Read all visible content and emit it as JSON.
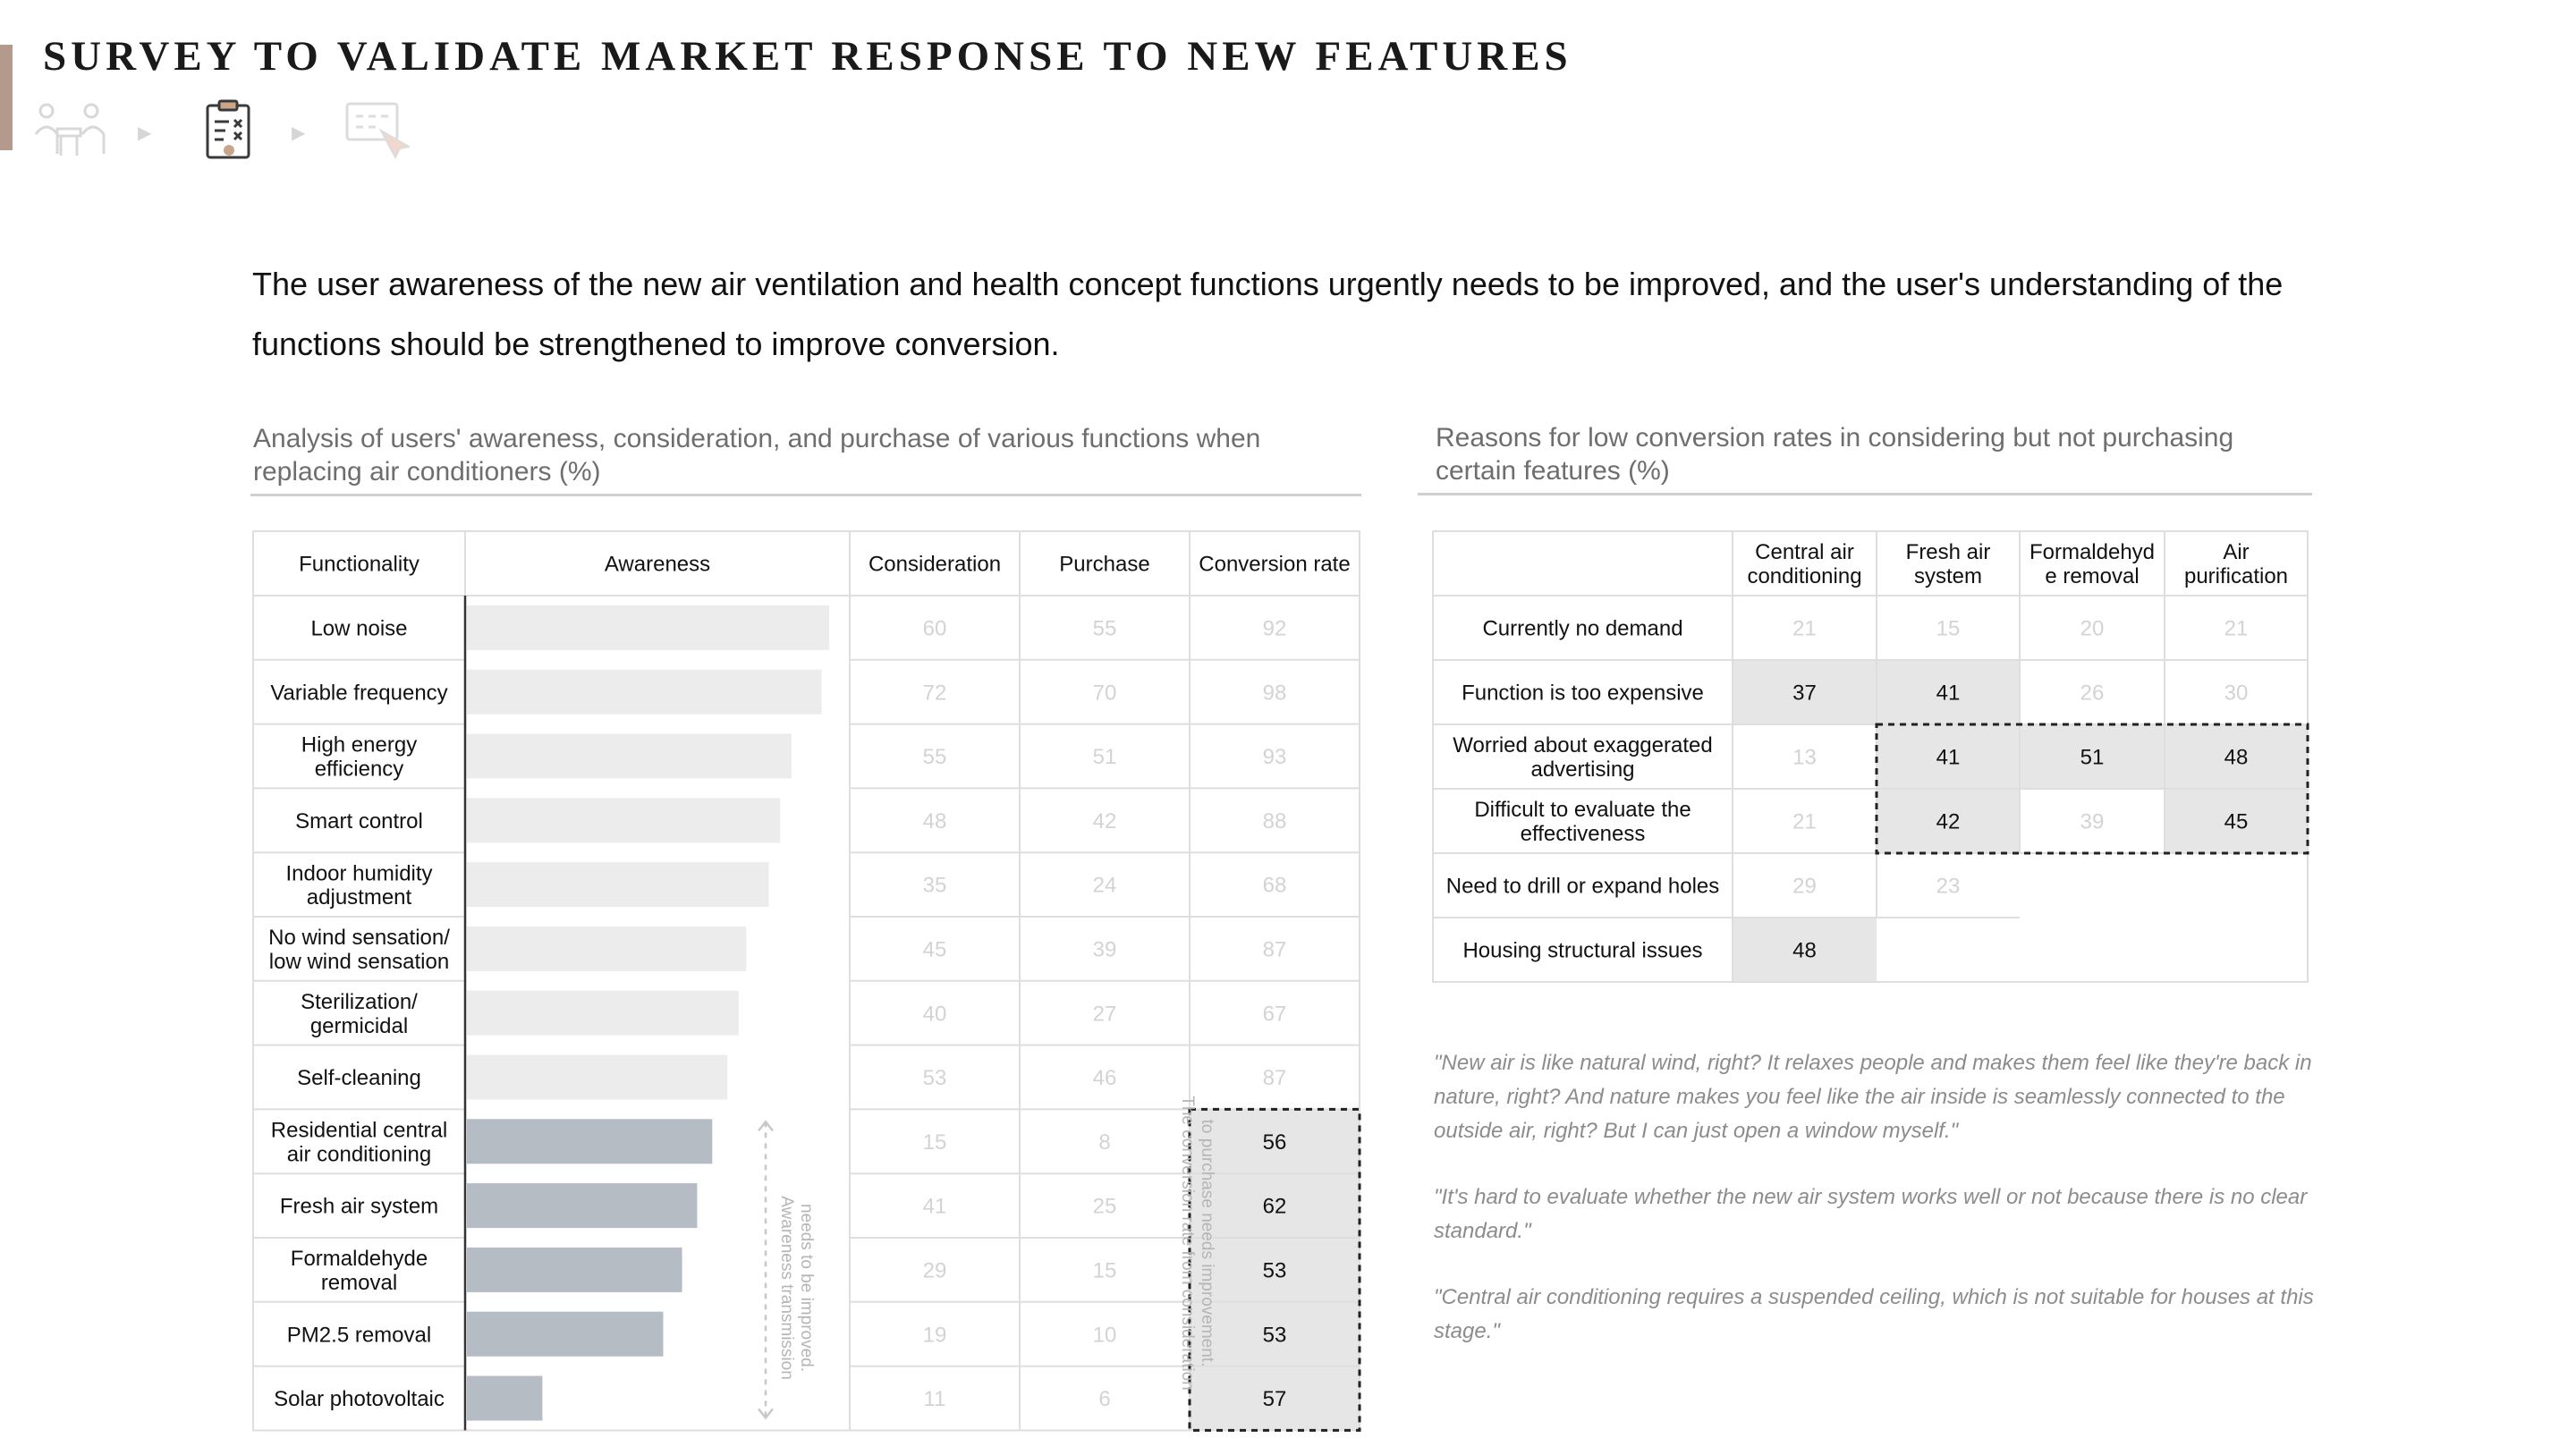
{
  "title": "SURVEY TO VALIDATE MARKET RESPONSE TO NEW FEATURES",
  "steps": [
    {
      "icon": "interview-icon",
      "state": "inactive"
    },
    {
      "icon": "survey-clipboard-icon",
      "state": "active"
    },
    {
      "icon": "screen-click-icon",
      "state": "inactive"
    }
  ],
  "headline": "The user awareness of the new air ventilation and health concept functions urgently needs to be improved, and the user's understanding of the functions should be strengthened to improve conversion.",
  "left": {
    "subtitle": "Analysis of users' awareness, consideration, and purchase of various functions when replacing air conditioners (%)",
    "annotation_awareness": [
      "Awareness transmission",
      "needs to be improved."
    ],
    "annotation_conversion": [
      "The conversion rate from consideration",
      "to purchase needs improvement."
    ]
  },
  "right": {
    "subtitle": "Reasons for low conversion rates in considering but not purchasing certain features (%)"
  },
  "chart_data": [
    {
      "type": "table",
      "columns": [
        "Functionality",
        "Awareness",
        "Consideration",
        "Purchase",
        "Conversion rate"
      ],
      "rows": [
        {
          "label": [
            "Low noise"
          ],
          "awareness": 96,
          "consideration": 60,
          "purchase": 55,
          "conversion": 92
        },
        {
          "label": [
            "Variable frequency"
          ],
          "awareness": 94,
          "consideration": 72,
          "purchase": 70,
          "conversion": 98
        },
        {
          "label": [
            "High energy",
            "efficiency"
          ],
          "awareness": 86,
          "consideration": 55,
          "purchase": 51,
          "conversion": 93
        },
        {
          "label": [
            "Smart control"
          ],
          "awareness": 83,
          "consideration": 48,
          "purchase": 42,
          "conversion": 88
        },
        {
          "label": [
            "Indoor humidity",
            "adjustment"
          ],
          "awareness": 80,
          "consideration": 35,
          "purchase": 24,
          "conversion": 68
        },
        {
          "label": [
            "No wind sensation/",
            "low wind sensation"
          ],
          "awareness": 74,
          "consideration": 45,
          "purchase": 39,
          "conversion": 87
        },
        {
          "label": [
            "Sterilization/",
            "germicidal"
          ],
          "awareness": 72,
          "consideration": 40,
          "purchase": 27,
          "conversion": 67
        },
        {
          "label": [
            "Self-cleaning"
          ],
          "awareness": 69,
          "consideration": 53,
          "purchase": 46,
          "conversion": 87
        },
        {
          "label": [
            "Residential central",
            "air conditioning"
          ],
          "awareness": 65,
          "consideration": 15,
          "purchase": 8,
          "conversion": 56
        },
        {
          "label": [
            "Fresh air system"
          ],
          "awareness": 61,
          "consideration": 41,
          "purchase": 25,
          "conversion": 62
        },
        {
          "label": [
            "Formaldehyde",
            "removal"
          ],
          "awareness": 57,
          "consideration": 29,
          "purchase": 15,
          "conversion": 53
        },
        {
          "label": [
            "PM2.5 removal"
          ],
          "awareness": 52,
          "consideration": 19,
          "purchase": 10,
          "conversion": 53
        },
        {
          "label": [
            "Solar photovoltaic"
          ],
          "awareness": 20,
          "consideration": 11,
          "purchase": 6,
          "conversion": 57
        }
      ],
      "highlighted_rows_from": 8,
      "colors": {
        "bar_light": "#ececed",
        "bar_dark": "#b6bcc3",
        "highlight_cell": "#e6e6e7",
        "faded_text": "#d3d3d3"
      }
    },
    {
      "type": "table",
      "columns": [
        [
          "Central air",
          "conditioning"
        ],
        [
          "Fresh air",
          "system"
        ],
        [
          "Formaldehyd",
          "e removal"
        ],
        [
          "Air",
          "purification"
        ]
      ],
      "rows": [
        {
          "label": [
            "Currently no demand"
          ],
          "values": [
            21,
            15,
            20,
            21
          ],
          "highlight": [
            false,
            false,
            false,
            false
          ]
        },
        {
          "label": [
            "Function is too expensive"
          ],
          "values": [
            37,
            41,
            26,
            30
          ],
          "highlight": [
            true,
            true,
            false,
            false
          ]
        },
        {
          "label": [
            "Worried about exaggerated",
            "advertising"
          ],
          "values": [
            13,
            41,
            51,
            48
          ],
          "highlight": [
            false,
            true,
            true,
            true
          ]
        },
        {
          "label": [
            "Difficult to evaluate the",
            "effectiveness"
          ],
          "values": [
            21,
            42,
            39,
            45
          ],
          "highlight": [
            false,
            true,
            false,
            true
          ]
        },
        {
          "label": [
            "Need to drill or expand holes"
          ],
          "values": [
            29,
            23,
            null,
            null
          ],
          "highlight": [
            false,
            false,
            false,
            false
          ]
        },
        {
          "label": [
            "Housing structural issues"
          ],
          "values": [
            48,
            null,
            null,
            null
          ],
          "highlight": [
            true,
            false,
            false,
            false
          ]
        }
      ]
    }
  ],
  "quotes": [
    "\"New air is like natural wind, right? It relaxes people and makes them feel like they're back in nature, right? And nature makes you feel like the air inside is seamlessly connected to the outside air, right? But I can just open a window myself.\"",
    "\"It's hard to evaluate whether the new air system works well or not because there is no clear standard.\"",
    "\"Central air conditioning requires a suspended ceiling, which is not suitable for houses at this stage.\""
  ]
}
